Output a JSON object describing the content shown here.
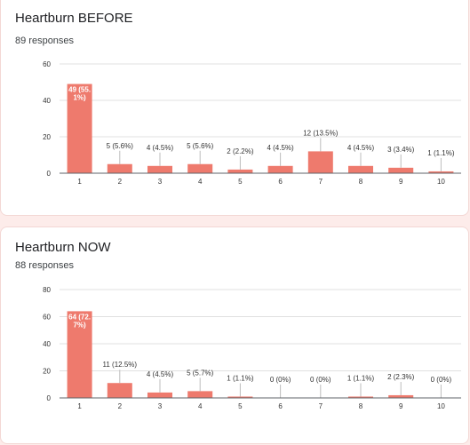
{
  "colors": {
    "bar": "#ee7a6d",
    "grid": "#e0e0e0",
    "axis": "#5f6368",
    "text": "#333333",
    "inside_label": "#ffffff"
  },
  "chart_data": [
    {
      "type": "bar",
      "title": "Heartburn BEFORE",
      "subtitle": "89 responses",
      "categories": [
        "1",
        "2",
        "3",
        "4",
        "5",
        "6",
        "7",
        "8",
        "9",
        "10"
      ],
      "values": [
        49,
        5,
        4,
        5,
        2,
        4,
        12,
        4,
        3,
        1
      ],
      "data_labels": [
        "49 (55.\n1%)",
        "5 (5.6%)",
        "4 (4.5%)",
        "5 (5.6%)",
        "2 (2.2%)",
        "4 (4.5%)",
        "12 (13.\n5%)",
        "4 (4.5%)",
        "3 (3.4%)",
        "1 (1.1%)"
      ],
      "yticks": [
        "0",
        "20",
        "40",
        "60"
      ],
      "ylim": [
        0,
        60
      ],
      "grid": true,
      "xlabel": "",
      "ylabel": ""
    },
    {
      "type": "bar",
      "title": "Heartburn NOW",
      "subtitle": "88 responses",
      "categories": [
        "1",
        "2",
        "3",
        "4",
        "5",
        "6",
        "7",
        "8",
        "9",
        "10"
      ],
      "values": [
        64,
        11,
        4,
        5,
        1,
        0,
        0,
        1,
        2,
        0
      ],
      "data_labels": [
        "64 (72.\n7%)",
        "11 (12.5%)",
        "4 (4.5%)",
        "5 (5.7%)",
        "1 (1.1%)",
        "0 (0%)",
        "0 (0%)",
        "1 (1.1%)",
        "2 (2.3%)",
        "0 (0%)"
      ],
      "yticks": [
        "0",
        "20",
        "40",
        "60",
        "80"
      ],
      "ylim": [
        0,
        80
      ],
      "grid": true,
      "xlabel": "",
      "ylabel": ""
    }
  ]
}
